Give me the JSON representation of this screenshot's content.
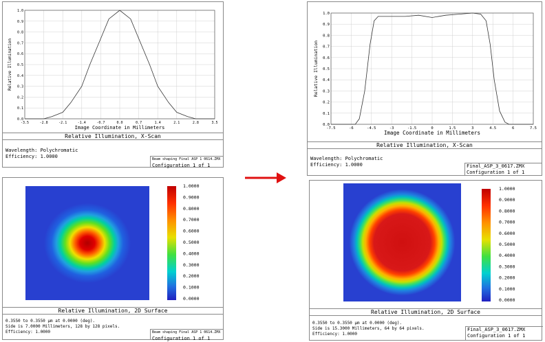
{
  "top_left": {
    "title_caption": "Relative Illumination, X-Scan",
    "wavelength": "Wavelength: Polychromatic",
    "efficiency": "Efficiency: 1.0000",
    "file": "Beam shaping Final ASP 1 0614.ZMX",
    "config": "Configuration 1 of 1"
  },
  "top_right": {
    "title_caption": "Relative Illumination, X-Scan",
    "wavelength": "Wavelength: Polychromatic",
    "efficiency": "Efficiency: 1.0000",
    "file": "Final_ASP_3_0617.ZMX",
    "config": "Configuration 1 of 1"
  },
  "bottom_left": {
    "title_caption": "Relative Illumination, 2D Surface",
    "line1": "0.3550 to 0.3550 µm at 0.0000 (deg).",
    "line2": "Side is 7.0000 Millimeters, 128 by 128 pixels.",
    "line3": "Efficiency: 1.0000",
    "file": "Beam shaping Final ASP 1 0614.ZMX",
    "config": "Configuration 1 of 1",
    "scale": [
      "1.0000",
      "0.9000",
      "0.8000",
      "0.7000",
      "0.6000",
      "0.5000",
      "0.4000",
      "0.3000",
      "0.2000",
      "0.1000",
      "0.0000"
    ]
  },
  "bottom_right": {
    "title_caption": "Relative Illumination, 2D Surface",
    "line1": "0.3550 to 0.3550 µm at 0.0000 (deg).",
    "line2": "Side is 15.3000 Millimeters, 64 by 64 pixels.",
    "line3": "Efficiency: 1.0000",
    "file": "Final_ASP_3_0617.ZMX",
    "config": "Configuration 1 of 1",
    "scale": [
      "1.0000",
      "0.9000",
      "0.8000",
      "0.7000",
      "0.6000",
      "0.5000",
      "0.4000",
      "0.3000",
      "0.2000",
      "0.1000",
      "0.0000"
    ]
  },
  "colors": {
    "arrow": "#e01010",
    "plot_line": "#333333"
  },
  "chart_data": [
    {
      "type": "line",
      "xlabel": "Image Coordinate in Millimeters",
      "ylabel": "Relative Illumination",
      "xlim": [
        -3.5,
        3.5
      ],
      "ylim": [
        0,
        1.0
      ],
      "xticks": [
        "-3.5",
        "-2.8",
        "-2.1",
        "-1.4",
        "-0.7",
        "0.0",
        "0.7",
        "1.4",
        "2.1",
        "2.8",
        "3.5"
      ],
      "yticks": [
        "0.0",
        "0.1",
        "0.2",
        "0.3",
        "0.4",
        "0.5",
        "0.6",
        "0.7",
        "0.8",
        "0.9",
        "1.0"
      ],
      "x": [
        -3.5,
        -3.2,
        -2.8,
        -2.5,
        -2.1,
        -1.8,
        -1.4,
        -1.1,
        -0.7,
        -0.4,
        0.0,
        0.4,
        0.7,
        1.1,
        1.4,
        1.8,
        2.1,
        2.5,
        2.8,
        3.2,
        3.5
      ],
      "y": [
        0.0,
        0.0,
        0.0,
        0.02,
        0.06,
        0.15,
        0.3,
        0.5,
        0.74,
        0.92,
        1.0,
        0.92,
        0.74,
        0.5,
        0.3,
        0.15,
        0.06,
        0.02,
        0.0,
        0.0,
        0.0
      ]
    },
    {
      "type": "line",
      "xlabel": "Image Coordinate in Millimeters",
      "ylabel": "Relative Illumination",
      "xlim": [
        -7.5,
        7.5
      ],
      "ylim": [
        0,
        1.0
      ],
      "xticks": [
        "-7.5",
        "-6",
        "-4.5",
        "-3",
        "-1.5",
        "0",
        "1.5",
        "3",
        "4.5",
        "6",
        "7.5"
      ],
      "yticks": [
        "0.0",
        "0.1",
        "0.2",
        "0.3",
        "0.4",
        "0.5",
        "0.6",
        "0.7",
        "0.8",
        "0.9",
        "1.0"
      ],
      "x": [
        -7.5,
        -6.0,
        -5.7,
        -5.4,
        -5.0,
        -4.6,
        -4.3,
        -4.0,
        -3.0,
        -2.0,
        -1.0,
        0.0,
        1.0,
        2.0,
        3.0,
        3.6,
        4.0,
        4.3,
        4.6,
        5.0,
        5.4,
        5.7,
        6.0,
        7.5
      ],
      "y": [
        0.0,
        0.0,
        0.0,
        0.05,
        0.3,
        0.72,
        0.93,
        0.97,
        0.97,
        0.97,
        0.98,
        0.96,
        0.98,
        0.99,
        1.0,
        0.99,
        0.93,
        0.72,
        0.4,
        0.12,
        0.02,
        0.0,
        0.0,
        0.0
      ]
    }
  ]
}
